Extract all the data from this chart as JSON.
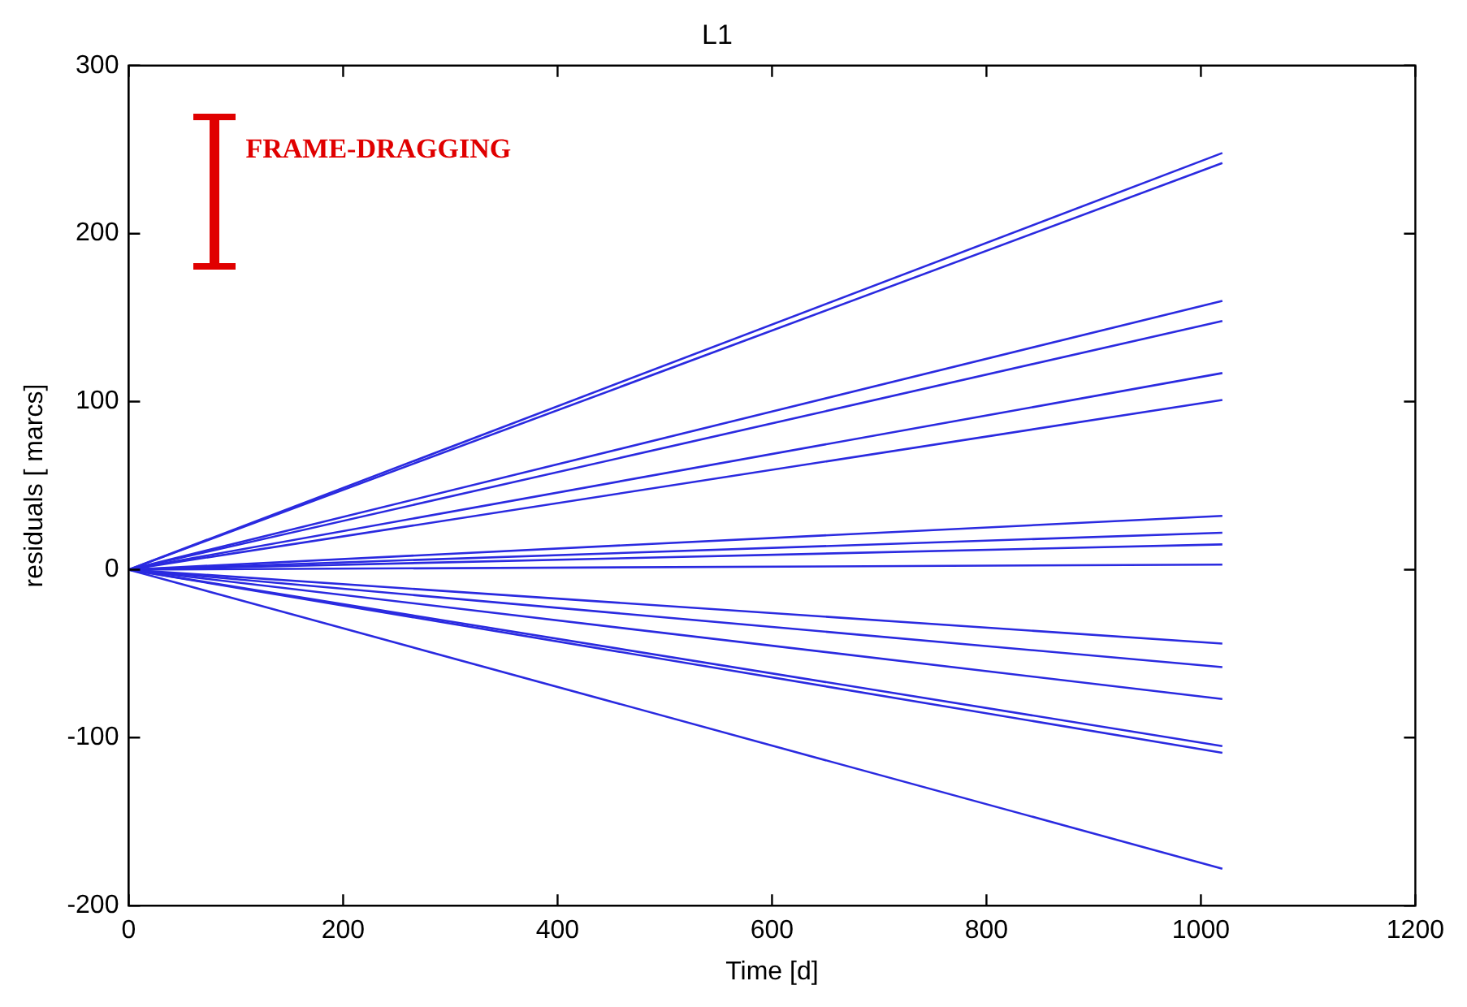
{
  "chart_data": {
    "type": "line",
    "title": "L1",
    "xlabel": "Time [d]",
    "ylabel": "residuals [ marcs]",
    "x": [
      0,
      1020
    ],
    "xlim": [
      0,
      1200
    ],
    "xticks": [
      0,
      200,
      400,
      600,
      800,
      1000,
      1200
    ],
    "ylim": [
      -200,
      300
    ],
    "yticks": [
      -200,
      -100,
      0,
      100,
      200,
      300
    ],
    "grid": false,
    "legend": false,
    "marker": "none",
    "line_style": "solid",
    "annotations": [
      "FRAME-DRAGGING"
    ],
    "series": [
      {
        "color": "#2a2ae0",
        "values": [
          0,
          248
        ]
      },
      {
        "color": "#2a2ae0",
        "values": [
          0,
          242
        ]
      },
      {
        "color": "#2a2ae0",
        "values": [
          0,
          160
        ]
      },
      {
        "color": "#2a2ae0",
        "values": [
          0,
          148
        ]
      },
      {
        "color": "#2a2ae0",
        "values": [
          0,
          117
        ]
      },
      {
        "color": "#2a2ae0",
        "values": [
          0,
          101
        ]
      },
      {
        "color": "#2a2ae0",
        "values": [
          0,
          32
        ]
      },
      {
        "color": "#2a2ae0",
        "values": [
          0,
          22
        ]
      },
      {
        "color": "#2a2ae0",
        "values": [
          0,
          15
        ]
      },
      {
        "color": "#2a2ae0",
        "values": [
          0,
          3
        ]
      },
      {
        "color": "#2a2ae0",
        "values": [
          0,
          -44
        ]
      },
      {
        "color": "#2a2ae0",
        "values": [
          0,
          -58
        ]
      },
      {
        "color": "#2a2ae0",
        "values": [
          0,
          -77
        ]
      },
      {
        "color": "#2a2ae0",
        "values": [
          0,
          -105
        ]
      },
      {
        "color": "#2a2ae0",
        "values": [
          0,
          -109
        ]
      },
      {
        "color": "#2a2ae0",
        "values": [
          0,
          -178
        ]
      }
    ]
  }
}
